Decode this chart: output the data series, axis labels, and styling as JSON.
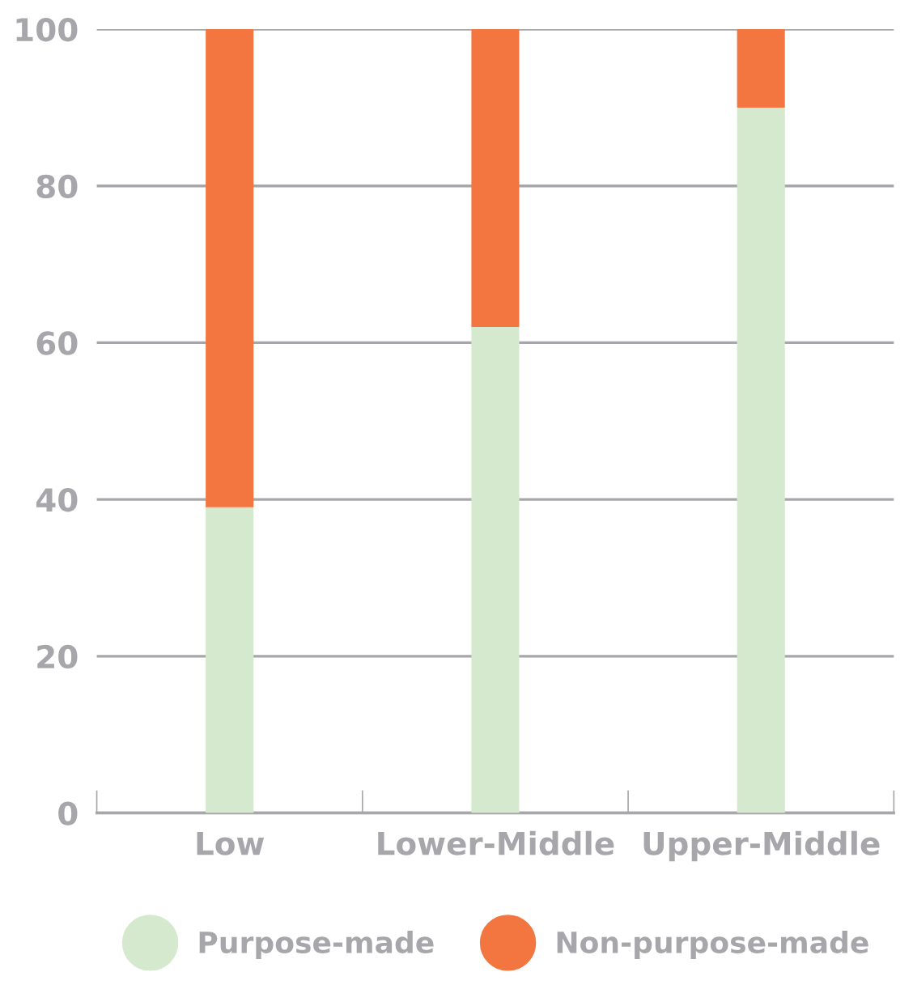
{
  "chart_data": {
    "type": "bar",
    "stacked": true,
    "categories": [
      "Low",
      "Lower-Middle",
      "Upper-Middle"
    ],
    "series": [
      {
        "name": "Purpose-made",
        "color": "#d5e9cf",
        "values": [
          39,
          62,
          90
        ]
      },
      {
        "name": "Non-purpose-made",
        "color": "#f37640",
        "values": [
          61,
          38,
          10
        ]
      }
    ],
    "ylim": [
      0,
      100
    ],
    "yticks": [
      0,
      20,
      40,
      60,
      80,
      100
    ],
    "grid": "y",
    "legend": "bottom"
  }
}
